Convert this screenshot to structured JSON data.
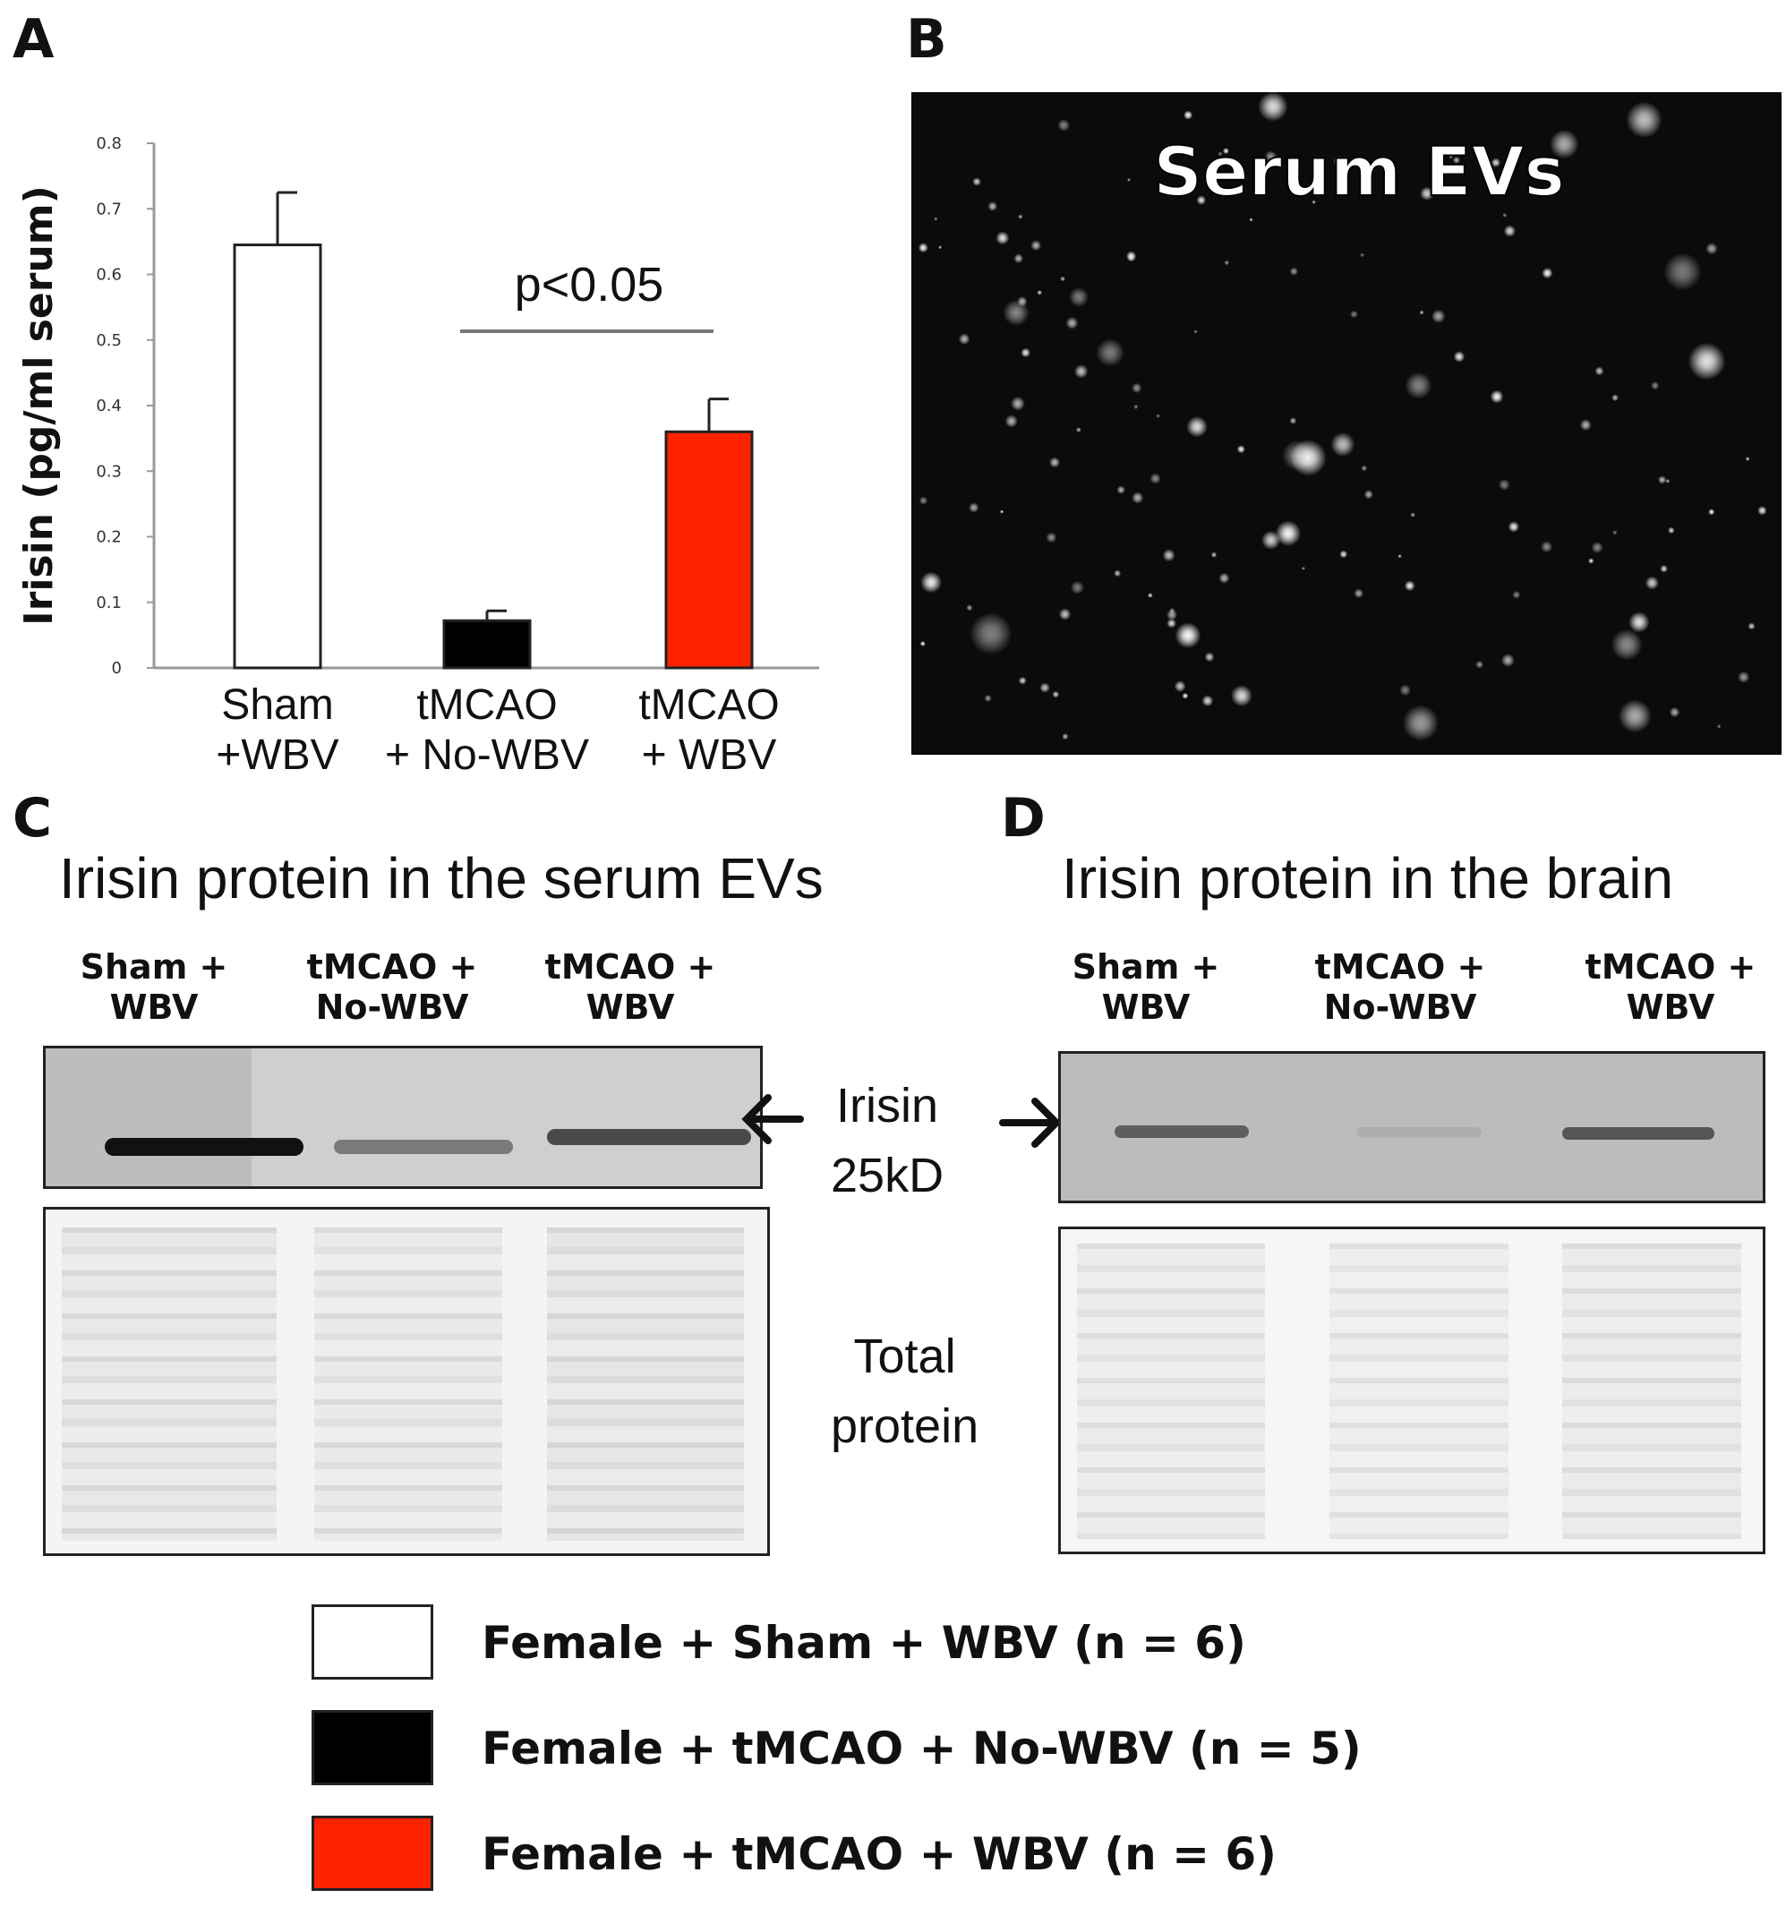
{
  "panels": {
    "a": "A",
    "b": "B",
    "c": "C",
    "d": "D"
  },
  "chart_data": {
    "type": "bar",
    "ylabel": "Irisin (pg/ml serum)",
    "ylim": [
      0,
      0.8
    ],
    "yticks": [
      "0",
      "0.1",
      "0.2",
      "0.3",
      "0.4",
      "0.5",
      "0.6",
      "0.7",
      "0.8"
    ],
    "categories": [
      [
        "Sham",
        "+WBV"
      ],
      [
        "tMCAO",
        "+ No-WBV"
      ],
      [
        "tMCAO",
        "+ WBV"
      ]
    ],
    "values": [
      0.645,
      0.072,
      0.36
    ],
    "errors": [
      0.08,
      0.015,
      0.05
    ],
    "colors": [
      "#ffffff",
      "#000000",
      "#ff2200"
    ],
    "annotation": {
      "text": "p<0.05",
      "from": 1,
      "to": 2
    }
  },
  "panel_b": {
    "label": "Serum EVs"
  },
  "panel_c": {
    "title": "Irisin protein in the serum EVs",
    "lanes": [
      [
        "Sham +",
        "WBV"
      ],
      [
        "tMCAO +",
        "No-WBV"
      ],
      [
        "tMCAO +",
        "WBV"
      ]
    ],
    "band_intensity": [
      1.0,
      0.45,
      0.7
    ]
  },
  "panel_d": {
    "title": "Irisin protein in the brain",
    "lanes": [
      [
        "Sham +",
        "WBV"
      ],
      [
        "tMCAO +",
        "No-WBV"
      ],
      [
        "tMCAO +",
        "WBV"
      ]
    ],
    "band_intensity": [
      0.55,
      0.08,
      0.6
    ]
  },
  "markers": {
    "irisin": [
      "Irisin",
      "25kD"
    ],
    "total": [
      "Total",
      "protein"
    ]
  },
  "legend": [
    {
      "label": "Female + Sham + WBV (n = 6)",
      "color": "#ffffff"
    },
    {
      "label": "Female + tMCAO + No-WBV (n = 5)",
      "color": "#000000"
    },
    {
      "label": "Female + tMCAO + WBV (n = 6)",
      "color": "#ff2200"
    }
  ]
}
